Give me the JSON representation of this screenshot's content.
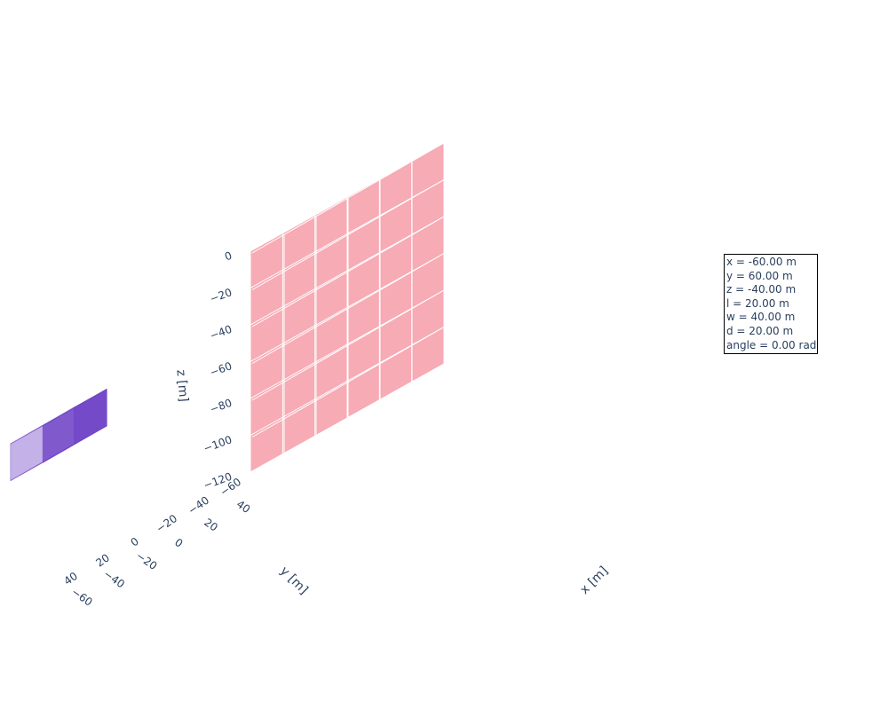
{
  "chart_data": {
    "type": "3d-box",
    "axes": {
      "x": {
        "title": "x [m]",
        "range": [
          -60,
          60
        ],
        "ticks": [
          -60,
          -40,
          -20,
          0,
          20,
          40
        ]
      },
      "y": {
        "title": "y [m]",
        "range": [
          -60,
          60
        ],
        "ticks": [
          -60,
          -40,
          -20,
          0,
          20,
          40
        ]
      },
      "z": {
        "title": "z [m]",
        "range": [
          -120,
          0
        ],
        "ticks": [
          0,
          -20,
          -40,
          -60,
          -80,
          -100,
          -120
        ]
      }
    },
    "colors": {
      "xz_wall": "#e0b4f7",
      "yz_wall": "#f7abb5",
      "floor": "#f3eda3",
      "grid": "#ffffff",
      "box": "#6a3cc4"
    },
    "box": {
      "x": -60,
      "y": 60,
      "z": -40,
      "l": 20,
      "w": 40,
      "d": 20,
      "angle": 0
    },
    "annotation": [
      "x = -60.00 m",
      "y = 60.00 m",
      "z = -40.00 m",
      "l = 20.00 m",
      "w = 40.00 m",
      "d = 20.00 m",
      "angle = 0.00 rad"
    ]
  }
}
